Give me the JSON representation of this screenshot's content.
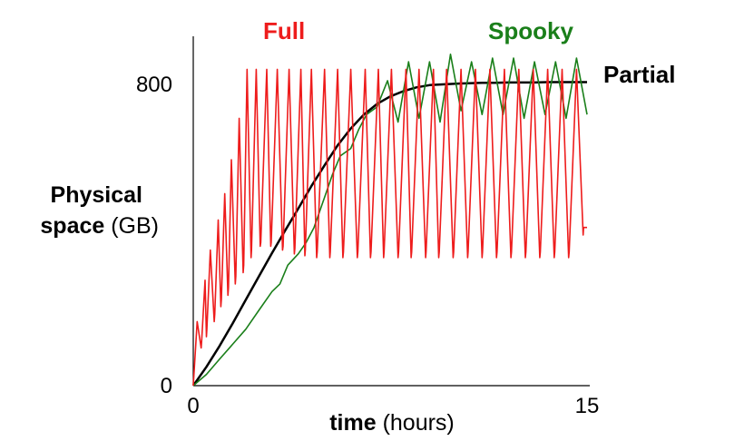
{
  "chart_data": {
    "type": "line",
    "xlabel_bold": "time",
    "xlabel_rest": " (hours)",
    "ylabel_line1": "Physical",
    "ylabel_line2_bold": "space",
    "ylabel_line2_rest": " (GB)",
    "xlim": [
      0,
      15
    ],
    "ylim": [
      0,
      800
    ],
    "x_ticks": [
      {
        "value": 0,
        "label": "0"
      },
      {
        "value": 15,
        "label": "15"
      }
    ],
    "y_ticks": [
      {
        "value": 0,
        "label": "0"
      },
      {
        "value": 800,
        "label": "800"
      }
    ],
    "grid": false,
    "series": [
      {
        "name": "Full",
        "color": "#ee1c1c",
        "description": "sawtooth",
        "x": [
          0,
          0.15,
          0.3,
          0.32,
          0.45,
          0.5,
          0.52,
          0.65,
          0.8,
          0.82,
          0.95,
          1.05,
          1.07,
          1.2,
          1.32,
          1.34,
          1.45,
          1.6,
          1.62,
          1.75,
          1.9,
          1.92,
          2.05,
          2.2,
          2.22,
          2.4,
          2.55,
          2.57,
          2.8,
          2.95,
          2.97,
          3.2,
          3.4,
          3.42,
          3.65,
          3.85,
          3.87,
          4.1,
          4.25,
          4.27,
          4.5,
          4.7,
          4.72,
          5.0,
          5.2,
          5.22,
          5.5,
          5.7,
          5.72,
          6.0,
          6.25,
          6.27,
          6.55,
          6.75,
          6.77,
          7.05,
          7.25,
          7.27,
          7.55,
          7.8,
          7.82,
          8.1,
          8.3,
          8.32,
          8.6,
          8.85,
          8.87,
          9.15,
          9.35,
          9.37,
          9.65,
          9.9,
          9.92,
          10.2,
          10.45,
          10.47,
          10.75,
          11.0,
          11.02,
          11.3,
          11.55,
          11.57,
          11.85,
          12.1,
          12.12,
          12.4,
          12.65,
          12.67,
          12.95,
          13.2,
          13.22,
          13.5,
          13.75,
          13.77,
          14.05,
          14.3,
          14.32,
          14.6,
          14.85,
          14.87,
          15.0
        ],
        "y": [
          0,
          170,
          100,
          120,
          280,
          130,
          150,
          360,
          170,
          190,
          440,
          210,
          230,
          510,
          240,
          260,
          600,
          270,
          290,
          710,
          300,
          320,
          840,
          340,
          360,
          840,
          370,
          380,
          840,
          370,
          380,
          840,
          360,
          370,
          840,
          350,
          365,
          840,
          345,
          360,
          840,
          340,
          355,
          840,
          340,
          355,
          840,
          340,
          355,
          840,
          340,
          355,
          840,
          340,
          355,
          840,
          340,
          355,
          840,
          340,
          355,
          840,
          340,
          355,
          840,
          340,
          355,
          840,
          340,
          355,
          840,
          340,
          355,
          840,
          340,
          355,
          840,
          340,
          355,
          840,
          340,
          355,
          840,
          340,
          355,
          840,
          340,
          355,
          840,
          340,
          355,
          840,
          340,
          355,
          840,
          340,
          355,
          840,
          400,
          420,
          420
        ]
      },
      {
        "name": "Partial",
        "color": "#000000",
        "x": [
          0,
          0.5,
          1.0,
          1.5,
          2.0,
          2.5,
          3.0,
          3.5,
          4.0,
          4.5,
          5.0,
          5.5,
          6.0,
          6.5,
          7.0,
          7.5,
          8.0,
          8.5,
          9.0,
          9.5,
          10.0,
          10.5,
          11.0,
          11.5,
          12.0,
          12.5,
          13.0,
          13.5,
          14.0,
          14.5,
          15.0
        ],
        "y": [
          0,
          50,
          105,
          165,
          228,
          290,
          352,
          412,
          470,
          530,
          585,
          638,
          683,
          720,
          748,
          768,
          782,
          792,
          798,
          800,
          802,
          803,
          804,
          804,
          805,
          805,
          805,
          806,
          806,
          806,
          806
        ]
      },
      {
        "name": "Spooky",
        "color": "#1a7f1a",
        "x": [
          0,
          0.5,
          1.0,
          1.5,
          2.0,
          2.5,
          3.0,
          3.3,
          3.6,
          4.0,
          4.3,
          4.6,
          5.0,
          5.3,
          5.6,
          6.0,
          6.3,
          6.6,
          7.0,
          7.4,
          7.8,
          8.2,
          8.6,
          9.0,
          9.4,
          9.8,
          10.2,
          10.6,
          11.0,
          11.4,
          11.8,
          12.2,
          12.6,
          13.0,
          13.4,
          13.8,
          14.2,
          14.6,
          15.0
        ],
        "y": [
          0,
          30,
          70,
          110,
          150,
          200,
          250,
          270,
          320,
          350,
          380,
          420,
          500,
          560,
          610,
          630,
          680,
          720,
          740,
          810,
          700,
          860,
          710,
          860,
          700,
          880,
          730,
          860,
          720,
          870,
          720,
          870,
          710,
          860,
          720,
          860,
          710,
          870,
          720
        ]
      }
    ]
  }
}
